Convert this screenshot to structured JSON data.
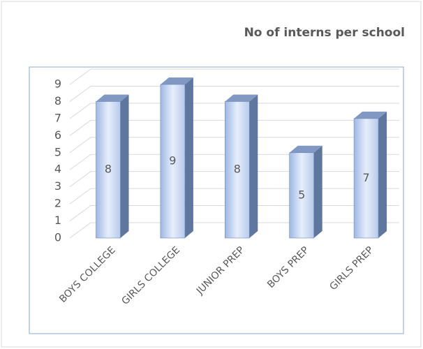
{
  "chart_data": {
    "type": "bar",
    "title": "No of interns per school",
    "categories": [
      "BOYS COLLEGE",
      "GIRLS COLLEGE",
      "JUNIOR PREP",
      "BOYS PREP",
      "GIRLS PREP"
    ],
    "values": [
      8,
      9,
      8,
      5,
      7
    ],
    "ylim": [
      0,
      9
    ],
    "yticks": [
      0,
      1,
      2,
      3,
      4,
      5,
      6,
      7,
      8,
      9
    ],
    "grid": true,
    "color": "#a9bfe6"
  }
}
